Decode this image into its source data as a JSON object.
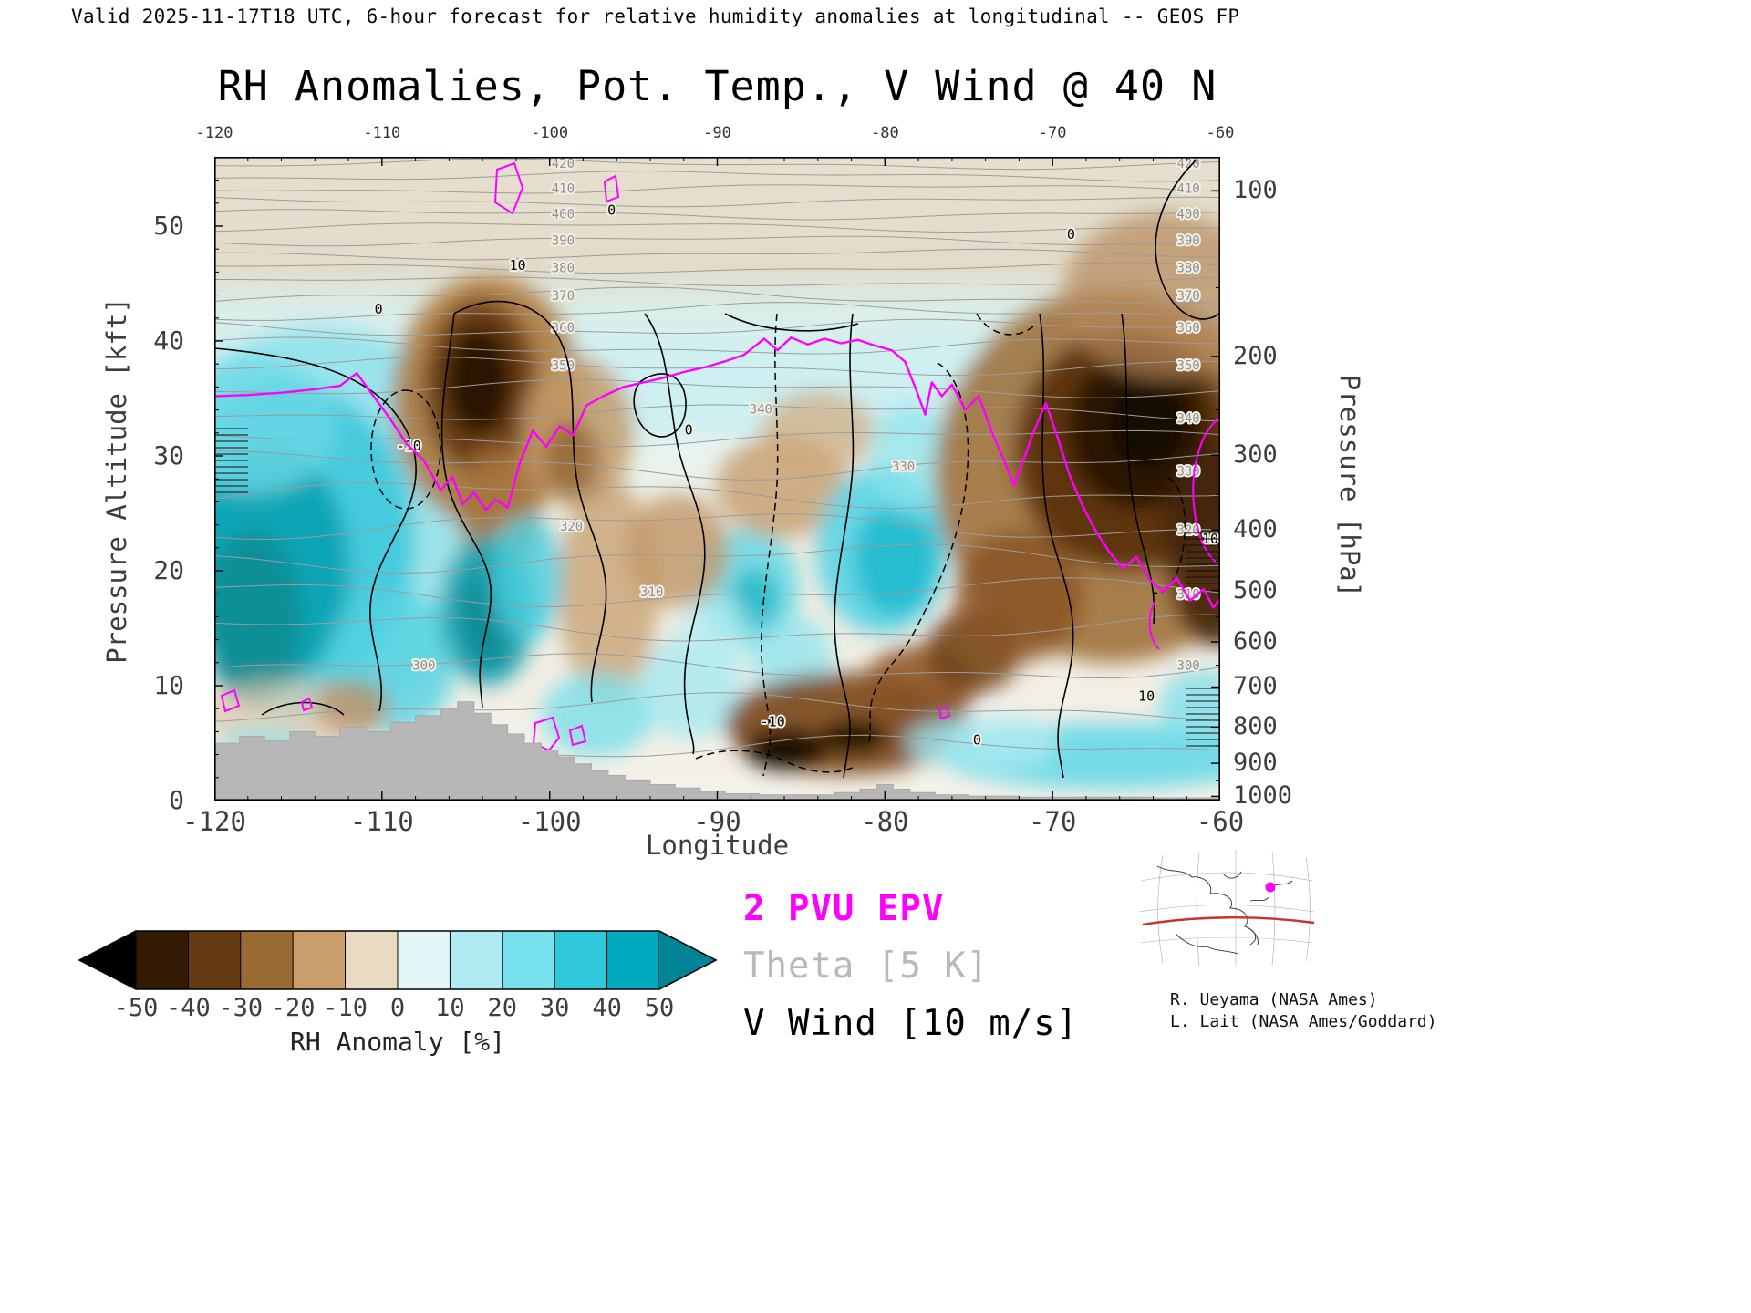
{
  "header": {
    "valid_line": "Valid 2025-11-17T18 UTC, 6-hour forecast for relative humidity anomalies at longitudinal -- GEOS FP",
    "title": "RH Anomalies, Pot. Temp., V Wind @ 40 N"
  },
  "axes": {
    "x": {
      "label": "Longitude",
      "ticks": [
        "-120",
        "-110",
        "-100",
        "-90",
        "-80",
        "-70",
        "-60"
      ]
    },
    "y_left": {
      "label": "Pressure Altitude [kft]",
      "ticks": [
        "0",
        "10",
        "20",
        "30",
        "40",
        "50"
      ]
    },
    "y_right": {
      "label": "Pressure [hPa]",
      "ticks": [
        "100",
        "200",
        "300",
        "400",
        "500",
        "600",
        "700",
        "800",
        "900",
        "1000"
      ]
    }
  },
  "colorbar": {
    "caption": "RH Anomaly [%]",
    "tick_labels": [
      "-50",
      "-40",
      "-30",
      "-20",
      "-10",
      "0",
      "10",
      "20",
      "30",
      "40",
      "50"
    ],
    "under_color": "#000000",
    "over_color": "#008496",
    "cell_colors": [
      "#331a05",
      "#643a12",
      "#9a6a33",
      "#c99e6d",
      "#ead9c3",
      "#e2f6f8",
      "#b0ebf2",
      "#76e0ec",
      "#2fc9db",
      "#00aabe"
    ]
  },
  "legend": {
    "entries": [
      {
        "label": "2 PVU EPV",
        "color": "#ff00ff"
      },
      {
        "label": "Theta [5 K]",
        "color": "#b8b8b8"
      },
      {
        "label": "V Wind [10 m/s]",
        "color": "#000000"
      }
    ]
  },
  "credits": {
    "line1": "R. Ueyama (NASA Ames)",
    "line2": "L. Lait (NASA Ames/Goddard)"
  },
  "chart_data": {
    "type": "heatmap",
    "title": "RH Anomalies, Pot. Temp., V Wind @ 40 N",
    "description": "Longitude-height cross section at 40N: relative humidity anomaly (filled colors), potential temperature (gray contours every 5 K), meridional wind V (black contours every 10 m/s, negative dashed), 2 PVU potential vorticity surface (magenta), terrain silhouette (gray).",
    "x_axis": {
      "label": "Longitude",
      "range": [
        -120,
        -60
      ],
      "ticks": [
        -120,
        -110,
        -100,
        -90,
        -80,
        -70,
        -60
      ]
    },
    "y_axis_left": {
      "label": "Pressure Altitude [kft]",
      "range": [
        0,
        56
      ],
      "ticks": [
        0,
        10,
        20,
        30,
        40,
        50
      ]
    },
    "y_axis_right": {
      "label": "Pressure [hPa]",
      "scale": "standard-atmosphere",
      "ticks": [
        100,
        200,
        300,
        400,
        500,
        600,
        700,
        800,
        900,
        1000
      ]
    },
    "filled_field": {
      "name": "RH Anomaly [%]",
      "levels": [
        -50,
        -40,
        -30,
        -20,
        -10,
        0,
        10,
        20,
        30,
        40,
        50
      ]
    },
    "overlays": [
      {
        "name": "2 PVU EPV",
        "style": "magenta solid line"
      },
      {
        "name": "Theta",
        "interval_K": 5,
        "style": "gray solid lines",
        "labeled_values": [
          300,
          310,
          320,
          330,
          340,
          350,
          360,
          370,
          380,
          390,
          400,
          410,
          420
        ]
      },
      {
        "name": "V Wind",
        "interval_ms": 10,
        "style": "black lines, dashed where negative",
        "labeled_values": [
          -10,
          0,
          10
        ]
      }
    ],
    "rh_anomaly_regions": [
      {
        "lon_range": [
          -120,
          -107
        ],
        "alt_kft_range": [
          8,
          38
        ],
        "anomaly_pct": "+30 to +50"
      },
      {
        "lon_range": [
          -107,
          -101
        ],
        "alt_kft_range": [
          26,
          44
        ],
        "anomaly_pct": "-40 to -50"
      },
      {
        "lon_range": [
          -107,
          -103
        ],
        "alt_kft_range": [
          10,
          22
        ],
        "anomaly_pct": "+30 to +45"
      },
      {
        "lon_range": [
          -101,
          -92
        ],
        "alt_kft_range": [
          0,
          30
        ],
        "anomaly_pct": "-10 to -30"
      },
      {
        "lon_range": [
          -97,
          -85
        ],
        "alt_kft_range": [
          8,
          22
        ],
        "anomaly_pct": "+10 to +30"
      },
      {
        "lon_range": [
          -90,
          -78
        ],
        "alt_kft_range": [
          2,
          10
        ],
        "anomaly_pct": "-40 to -55"
      },
      {
        "lon_range": [
          -84,
          -76
        ],
        "alt_kft_range": [
          14,
          32
        ],
        "anomaly_pct": "+25 to +40"
      },
      {
        "lon_range": [
          -78,
          -60
        ],
        "alt_kft_range": [
          18,
          46
        ],
        "anomaly_pct": "-35 to -55"
      },
      {
        "lon_range": [
          -73,
          -60
        ],
        "alt_kft_range": [
          2,
          9
        ],
        "anomaly_pct": "+15 to +30"
      }
    ],
    "tropopause_2pvu_lon_kft": [
      [
        -120,
        35.2
      ],
      [
        -118,
        35.3
      ],
      [
        -116,
        35.5
      ],
      [
        -114,
        35.8
      ],
      [
        -112.5,
        36.1
      ],
      [
        -111.5,
        37.2
      ],
      [
        -110.5,
        35.2
      ],
      [
        -109.5,
        33.2
      ],
      [
        -108.5,
        31.0
      ],
      [
        -107.5,
        29.6
      ],
      [
        -106.5,
        27.0
      ],
      [
        -105.8,
        28.2
      ],
      [
        -105.2,
        25.8
      ],
      [
        -104.5,
        26.8
      ],
      [
        -103.8,
        25.3
      ],
      [
        -103.2,
        26.2
      ],
      [
        -102.5,
        25.5
      ],
      [
        -101.8,
        29.3
      ],
      [
        -101,
        32.2
      ],
      [
        -100.2,
        30.8
      ],
      [
        -99.4,
        32.6
      ],
      [
        -98.6,
        31.8
      ],
      [
        -97.8,
        34.4
      ],
      [
        -96.8,
        35.2
      ],
      [
        -95.6,
        36.0
      ],
      [
        -94.4,
        36.4
      ],
      [
        -93.2,
        36.8
      ],
      [
        -92,
        37.3
      ],
      [
        -90.8,
        37.7
      ],
      [
        -89.6,
        38.2
      ],
      [
        -88.4,
        38.8
      ],
      [
        -87.2,
        40.2
      ],
      [
        -86.4,
        39.2
      ],
      [
        -85.6,
        40.3
      ],
      [
        -84.6,
        39.7
      ],
      [
        -83.6,
        40.2
      ],
      [
        -82.6,
        39.8
      ],
      [
        -81.6,
        40.1
      ],
      [
        -80.6,
        39.6
      ],
      [
        -79.6,
        39.2
      ],
      [
        -78.8,
        38.2
      ],
      [
        -78.2,
        36.0
      ],
      [
        -77.6,
        33.6
      ],
      [
        -77.2,
        36.4
      ],
      [
        -76.6,
        35.2
      ],
      [
        -76,
        36.2
      ],
      [
        -75.2,
        34.0
      ],
      [
        -74.4,
        35.2
      ],
      [
        -73.6,
        32.0
      ],
      [
        -72.9,
        29.6
      ],
      [
        -72.3,
        27.4
      ],
      [
        -71.7,
        29.8
      ],
      [
        -71.1,
        32.2
      ],
      [
        -70.4,
        34.6
      ],
      [
        -69.7,
        31.6
      ],
      [
        -69,
        28.4
      ],
      [
        -68.2,
        25.6
      ],
      [
        -67.4,
        23.4
      ],
      [
        -66.6,
        21.6
      ],
      [
        -65.8,
        20.2
      ],
      [
        -65,
        21.2
      ],
      [
        -64.2,
        19.2
      ],
      [
        -63.4,
        18.2
      ],
      [
        -62.6,
        19.4
      ],
      [
        -61.8,
        17.4
      ],
      [
        -61,
        18.4
      ],
      [
        -60.4,
        16.8
      ],
      [
        -60,
        17.6
      ]
    ],
    "terrain_lon_kft": [
      [
        -120,
        5.0
      ],
      [
        -118.5,
        5.6
      ],
      [
        -117,
        5.2
      ],
      [
        -115.5,
        6.0
      ],
      [
        -114,
        5.6
      ],
      [
        -112.5,
        6.4
      ],
      [
        -111,
        6.0
      ],
      [
        -109.5,
        6.8
      ],
      [
        -108,
        7.4
      ],
      [
        -106.5,
        8.0
      ],
      [
        -105.5,
        8.6
      ],
      [
        -104.5,
        7.6
      ],
      [
        -103.5,
        6.6
      ],
      [
        -102.5,
        5.8
      ],
      [
        -101.5,
        5.0
      ],
      [
        -100.5,
        4.4
      ],
      [
        -99.5,
        3.8
      ],
      [
        -98.5,
        3.2
      ],
      [
        -97.5,
        2.6
      ],
      [
        -96.5,
        2.2
      ],
      [
        -95.5,
        1.8
      ],
      [
        -94,
        1.4
      ],
      [
        -92.5,
        1.1
      ],
      [
        -91,
        0.8
      ],
      [
        -89.5,
        0.6
      ],
      [
        -87.5,
        0.5
      ],
      [
        -85,
        0.5
      ],
      [
        -83,
        0.7
      ],
      [
        -81.5,
        1.0
      ],
      [
        -80.5,
        1.4
      ],
      [
        -79.5,
        1.0
      ],
      [
        -78.5,
        0.7
      ],
      [
        -77,
        0.5
      ],
      [
        -75,
        0.4
      ],
      [
        -72,
        0.3
      ],
      [
        -68,
        0.3
      ],
      [
        -64,
        0.25
      ],
      [
        -60,
        0.25
      ]
    ],
    "theta_label_positions": [
      {
        "value": 420,
        "lon": -99.2,
        "kft": 55.4
      },
      {
        "value": 410,
        "lon": -99.2,
        "kft": 53.2
      },
      {
        "value": 400,
        "lon": -99.2,
        "kft": 51.0
      },
      {
        "value": 390,
        "lon": -99.2,
        "kft": 48.7
      },
      {
        "value": 380,
        "lon": -99.2,
        "kft": 46.3
      },
      {
        "value": 370,
        "lon": -99.2,
        "kft": 43.9
      },
      {
        "value": 360,
        "lon": -99.2,
        "kft": 41.1
      },
      {
        "value": 350,
        "lon": -99.2,
        "kft": 37.8
      },
      {
        "value": 340,
        "lon": -87.4,
        "kft": 34.0
      },
      {
        "value": 330,
        "lon": -78.9,
        "kft": 29.0
      },
      {
        "value": 320,
        "lon": -98.7,
        "kft": 23.8
      },
      {
        "value": 310,
        "lon": -93.9,
        "kft": 18.1
      },
      {
        "value": 300,
        "lon": -107.5,
        "kft": 11.7
      },
      {
        "value": 420,
        "lon": -61.9,
        "kft": 55.4
      },
      {
        "value": 410,
        "lon": -61.9,
        "kft": 53.2
      },
      {
        "value": 400,
        "lon": -61.9,
        "kft": 51.0
      },
      {
        "value": 390,
        "lon": -61.9,
        "kft": 48.7
      },
      {
        "value": 380,
        "lon": -61.9,
        "kft": 46.3
      },
      {
        "value": 370,
        "lon": -61.9,
        "kft": 43.9
      },
      {
        "value": 360,
        "lon": -61.9,
        "kft": 41.1
      },
      {
        "value": 350,
        "lon": -61.9,
        "kft": 37.8
      },
      {
        "value": 340,
        "lon": -61.9,
        "kft": 33.2
      },
      {
        "value": 330,
        "lon": -61.9,
        "kft": 28.6
      },
      {
        "value": 320,
        "lon": -61.9,
        "kft": 23.5
      },
      {
        "value": 310,
        "lon": -61.9,
        "kft": 17.9
      },
      {
        "value": 300,
        "lon": -61.9,
        "kft": 11.7
      }
    ],
    "v_wind_label_positions": [
      {
        "value": "10",
        "lon": -101.9,
        "kft": 46.5
      },
      {
        "value": "0",
        "lon": -110.2,
        "kft": 42.7
      },
      {
        "value": "0",
        "lon": -96.3,
        "kft": 51.3
      },
      {
        "value": "0",
        "lon": -91.7,
        "kft": 32.2
      },
      {
        "value": "-10",
        "lon": -108.4,
        "kft": 30.8
      },
      {
        "value": "-10",
        "lon": -86.7,
        "kft": 6.8
      },
      {
        "value": "0",
        "lon": -74.5,
        "kft": 5.2
      },
      {
        "value": "10",
        "lon": -64.4,
        "kft": 9.0
      },
      {
        "value": "0",
        "lon": -68.9,
        "kft": 49.2
      },
      {
        "value": "10",
        "lon": -60.6,
        "kft": 22.7
      }
    ]
  }
}
